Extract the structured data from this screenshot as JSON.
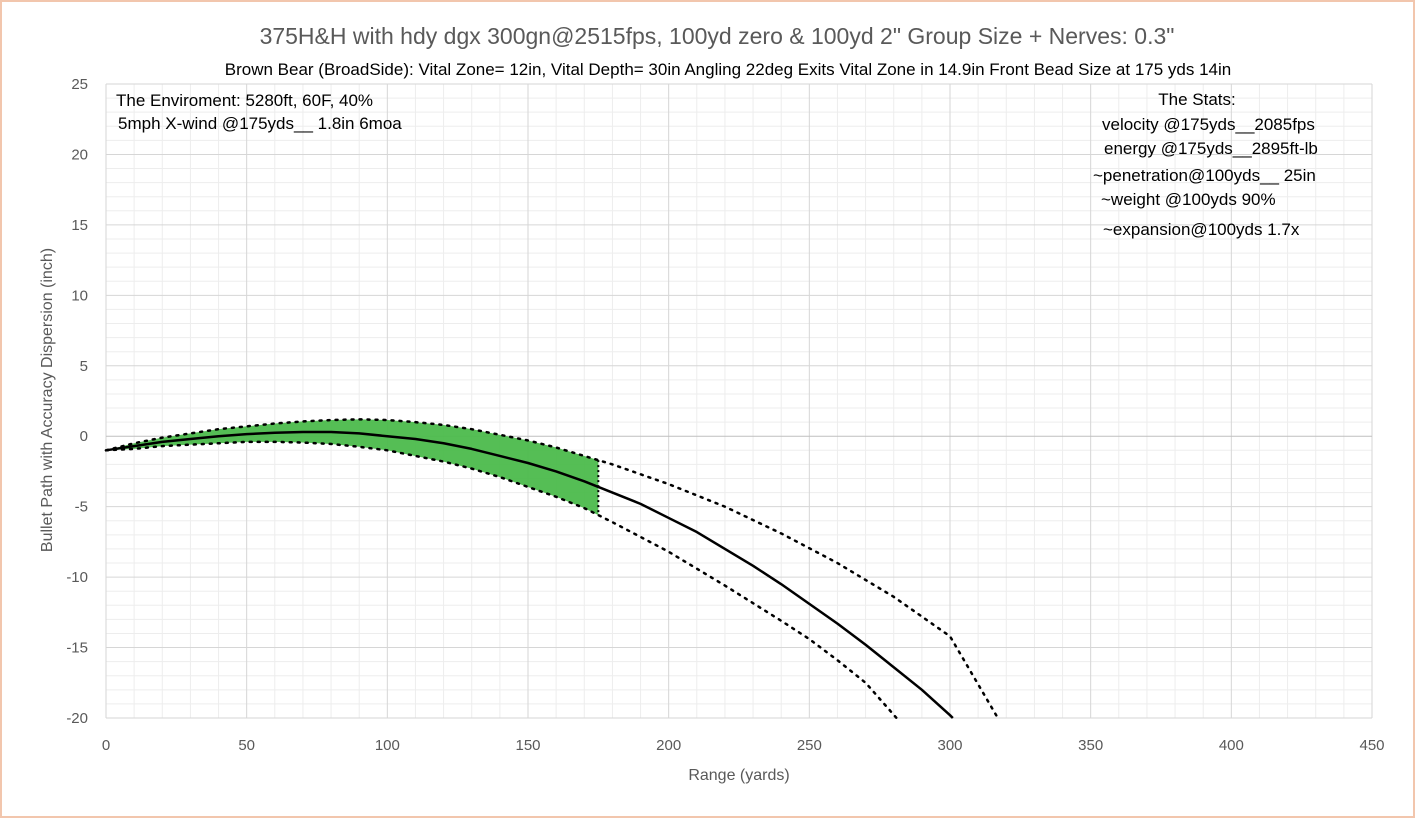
{
  "chart_data": {
    "type": "line",
    "title": "375H&H with hdy dgx 300gn@2515fps, 100yd zero & 100yd  2\" Group Size + Nerves: 0.3\"",
    "subtitle": "Brown Bear (BroadSide): Vital Zone= 12in, Vital Depth= 30in   Angling 22deg Exits Vital Zone in 14.9in    Front Bead Size at 175 yds 14in",
    "xlabel": "Range (yards)",
    "ylabel": "Bullet Path with Accuracy Dispersion (inch)",
    "xlim": [
      0,
      450
    ],
    "ylim": [
      -20,
      25
    ],
    "x_ticks": [
      0,
      50,
      100,
      150,
      200,
      250,
      300,
      350,
      400,
      450
    ],
    "y_ticks": [
      25,
      20,
      15,
      10,
      5,
      0,
      -5,
      -10,
      -15,
      -20
    ],
    "grid": true,
    "legend": "none",
    "vital_zone_range_end": 175,
    "series": [
      {
        "role": "bullet-path",
        "color": "#000000",
        "points": [
          [
            0,
            -1.0
          ],
          [
            10,
            -0.7
          ],
          [
            20,
            -0.4
          ],
          [
            30,
            -0.2
          ],
          [
            40,
            0.0
          ],
          [
            50,
            0.15
          ],
          [
            60,
            0.25
          ],
          [
            70,
            0.3
          ],
          [
            80,
            0.3
          ],
          [
            90,
            0.2
          ],
          [
            100,
            0.0
          ],
          [
            110,
            -0.2
          ],
          [
            120,
            -0.5
          ],
          [
            130,
            -0.9
          ],
          [
            140,
            -1.4
          ],
          [
            150,
            -1.9
          ],
          [
            160,
            -2.5
          ],
          [
            170,
            -3.2
          ],
          [
            175,
            -3.6
          ],
          [
            180,
            -4.0
          ],
          [
            190,
            -4.8
          ],
          [
            200,
            -5.8
          ],
          [
            210,
            -6.8
          ],
          [
            220,
            -8.0
          ],
          [
            230,
            -9.2
          ],
          [
            240,
            -10.5
          ],
          [
            250,
            -11.9
          ],
          [
            260,
            -13.3
          ],
          [
            270,
            -14.8
          ],
          [
            280,
            -16.4
          ],
          [
            290,
            -18.0
          ],
          [
            300,
            -19.8
          ],
          [
            301,
            -20.0
          ]
        ]
      },
      {
        "role": "upper-dispersion",
        "color": "#000000",
        "style": "dotted",
        "points": [
          [
            0,
            -1.0
          ],
          [
            10,
            -0.5
          ],
          [
            20,
            -0.1
          ],
          [
            30,
            0.2
          ],
          [
            40,
            0.5
          ],
          [
            50,
            0.7
          ],
          [
            60,
            0.9
          ],
          [
            70,
            1.05
          ],
          [
            80,
            1.15
          ],
          [
            90,
            1.2
          ],
          [
            100,
            1.15
          ],
          [
            110,
            1.0
          ],
          [
            120,
            0.8
          ],
          [
            130,
            0.5
          ],
          [
            140,
            0.1
          ],
          [
            150,
            -0.3
          ],
          [
            160,
            -0.8
          ],
          [
            170,
            -1.4
          ],
          [
            175,
            -1.7
          ],
          [
            180,
            -2.0
          ],
          [
            200,
            -3.4
          ],
          [
            220,
            -5.0
          ],
          [
            240,
            -6.9
          ],
          [
            260,
            -9.0
          ],
          [
            280,
            -11.4
          ],
          [
            300,
            -14.2
          ],
          [
            317,
            -20.0
          ]
        ]
      },
      {
        "role": "lower-dispersion",
        "color": "#000000",
        "style": "dotted",
        "points": [
          [
            0,
            -1.0
          ],
          [
            10,
            -0.9
          ],
          [
            20,
            -0.7
          ],
          [
            30,
            -0.6
          ],
          [
            40,
            -0.5
          ],
          [
            50,
            -0.4
          ],
          [
            60,
            -0.4
          ],
          [
            70,
            -0.45
          ],
          [
            80,
            -0.55
          ],
          [
            90,
            -0.75
          ],
          [
            100,
            -1.0
          ],
          [
            110,
            -1.4
          ],
          [
            120,
            -1.8
          ],
          [
            130,
            -2.3
          ],
          [
            140,
            -2.9
          ],
          [
            150,
            -3.6
          ],
          [
            160,
            -4.3
          ],
          [
            170,
            -5.1
          ],
          [
            175,
            -5.6
          ],
          [
            180,
            -6.1
          ],
          [
            200,
            -8.2
          ],
          [
            220,
            -10.6
          ],
          [
            240,
            -13.1
          ],
          [
            250,
            -14.4
          ],
          [
            260,
            -15.9
          ],
          [
            270,
            -17.5
          ],
          [
            281,
            -20.0
          ]
        ]
      }
    ],
    "fill_color": "#4cba4c",
    "annotations": {
      "environment": [
        "The Enviroment: 5280ft, 60F,  40%",
        "5mph X-wind @175yds__ 1.8in 6moa"
      ],
      "stats_title": "The Stats:",
      "stats": [
        "velocity @175yds__2085fps",
        "energy @175yds__2895ft-lb",
        "~penetration@100yds__ 25in",
        "~weight @100yds 90%",
        "~expansion@100yds 1.7x"
      ]
    }
  }
}
